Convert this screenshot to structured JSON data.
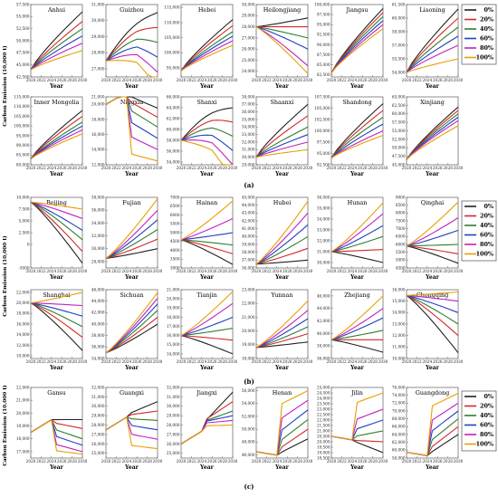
{
  "figure": {
    "xlabel": "Year",
    "xticks": [
      "2020",
      "2022",
      "2024",
      "2026",
      "2028",
      "2030"
    ],
    "legend": [
      "0%",
      "20%",
      "40%",
      "60%",
      "80%",
      "100%"
    ],
    "colors": [
      "#222222",
      "#d62728",
      "#2e7d32",
      "#1f3fbf",
      "#c020c0",
      "#e6a000"
    ],
    "sections": [
      {
        "label": "(a)",
        "ylabel": "Carbon Emission (10,000 t)"
      },
      {
        "label": "(b)",
        "ylabel": "Carbon Emission (10,000 t)"
      },
      {
        "label": "(c)",
        "ylabel": "Carbon Emission (10,000 t)"
      }
    ]
  },
  "chart_data": [
    {
      "type": "line",
      "section": "a",
      "title": "Anhui",
      "yticks": [
        "42,500",
        "45,000",
        "47,500",
        "50,000",
        "52,500",
        "55,000",
        "57,500"
      ],
      "ylim": [
        42500,
        57500
      ],
      "x": [
        2020,
        2030
      ],
      "pattern": "up",
      "start": 44000,
      "ends": [
        56000,
        54000,
        52500,
        51000,
        49500,
        48000
      ]
    },
    {
      "type": "line",
      "section": "a",
      "title": "Guizhou",
      "yticks": [
        "27,000",
        "28,000",
        "29,000",
        "30,000",
        "31,000"
      ],
      "ylim": [
        26500,
        31000
      ],
      "x": [
        2020,
        2030
      ],
      "pattern": "hump",
      "start": 27500,
      "ends": [
        30500,
        29800,
        29100,
        28400,
        27700,
        27000
      ]
    },
    {
      "type": "line",
      "section": "a",
      "title": "Hebei",
      "yticks": [
        "95,000",
        "100,000",
        "105,000",
        "110,000",
        "115,000"
      ],
      "ylim": [
        92000,
        116000
      ],
      "x": [
        2020,
        2030
      ],
      "pattern": "up",
      "start": 94000,
      "ends": [
        111000,
        109000,
        107000,
        105500,
        104000,
        102500
      ]
    },
    {
      "type": "line",
      "section": "a",
      "title": "Heilongjiang",
      "yticks": [
        "24,000",
        "25,000",
        "26,000",
        "27,000",
        "28,000",
        "29,000",
        "30,000"
      ],
      "ylim": [
        23500,
        30000
      ],
      "x": [
        2020,
        2030
      ],
      "pattern": "fan-down",
      "start": 28000,
      "ends": [
        28800,
        28000,
        27000,
        26000,
        24500,
        23800
      ]
    },
    {
      "type": "line",
      "section": "a",
      "title": "Jiangsu",
      "yticks": [
        "82,500",
        "85,000",
        "87,500",
        "90,000",
        "92,500",
        "95,000",
        "97,500",
        "100,000"
      ],
      "ylim": [
        82000,
        100000
      ],
      "x": [
        2020,
        2030
      ],
      "pattern": "up",
      "start": 83000,
      "ends": [
        99000,
        98000,
        97000,
        96000,
        95000,
        94000
      ]
    },
    {
      "type": "line",
      "section": "a",
      "title": "Liaoning",
      "yticks": [
        "54,000",
        "55,500",
        "57,000",
        "58,500",
        "60,000",
        "61,500"
      ],
      "ylim": [
        53500,
        61500
      ],
      "x": [
        2020,
        2030
      ],
      "pattern": "up",
      "start": 54000,
      "ends": [
        61000,
        60000,
        59000,
        58000,
        57000,
        55500
      ]
    },
    {
      "type": "line",
      "section": "a",
      "title": "Inner Mongolia",
      "yticks": [
        "80,000",
        "85,000",
        "90,000",
        "95,000",
        "100,000",
        "105,000",
        "110,000",
        "115,000"
      ],
      "ylim": [
        80000,
        115000
      ],
      "x": [
        2020,
        2030
      ],
      "pattern": "up",
      "start": 83000,
      "ends": [
        108000,
        105000,
        102000,
        100000,
        98000,
        96000
      ]
    },
    {
      "type": "line",
      "section": "a",
      "title": "Ningxia",
      "yticks": [
        "12,000",
        "14,000",
        "16,000",
        "18,000",
        "20,000",
        "21,000"
      ],
      "ylim": [
        12000,
        21000
      ],
      "x": [
        2020,
        2030
      ],
      "pattern": "step-down",
      "start": 20000,
      "ends": [
        19500,
        18300,
        17000,
        15500,
        14000,
        12500
      ]
    },
    {
      "type": "line",
      "section": "a",
      "title": "Shanxi",
      "yticks": [
        "54,000",
        "56,000",
        "58,000",
        "60,000",
        "62,000",
        "64,000",
        "66,000"
      ],
      "ylim": [
        53500,
        66000
      ],
      "x": [
        2020,
        2030
      ],
      "pattern": "hump",
      "start": 58000,
      "ends": [
        64000,
        62000,
        60000,
        58000,
        56000,
        54000
      ]
    },
    {
      "type": "line",
      "section": "a",
      "title": "Shaanxi",
      "yticks": [
        "29,000",
        "30,000",
        "31,000",
        "32,000",
        "33,000",
        "34,000",
        "35,000",
        "36,000",
        "37,000",
        "38,000"
      ],
      "ylim": [
        29000,
        38000
      ],
      "x": [
        2020,
        2030
      ],
      "pattern": "up",
      "start": 30000,
      "ends": [
        37000,
        35500,
        34000,
        33000,
        32000,
        31000
      ]
    },
    {
      "type": "line",
      "section": "a",
      "title": "Shandong",
      "yticks": [
        "92,500",
        "95,000",
        "97,500",
        "100,000",
        "102,500",
        "105,000",
        "107,500"
      ],
      "ylim": [
        92500,
        107500
      ],
      "x": [
        2020,
        2030
      ],
      "pattern": "up",
      "start": 94000,
      "ends": [
        106000,
        104500,
        103000,
        101500,
        100000,
        99000
      ]
    },
    {
      "type": "line",
      "section": "a",
      "title": "Xinjiang",
      "yticks": [
        "45,000",
        "47,500",
        "50,000",
        "52,500",
        "55,000",
        "57,500",
        "60,000",
        "62,500",
        "65,000"
      ],
      "ylim": [
        45000,
        65000
      ],
      "x": [
        2020,
        2030
      ],
      "pattern": "up",
      "start": 46500,
      "ends": [
        62000,
        61000,
        60000,
        59000,
        58000,
        56500
      ]
    },
    {
      "type": "line",
      "section": "b",
      "title": "Beijing",
      "yticks": [
        "-5000",
        "0",
        "2,500",
        "5,000",
        "7,500",
        "10,000"
      ],
      "ylim": [
        -5000,
        10000
      ],
      "x": [
        2020,
        2030
      ],
      "pattern": "fan-down",
      "start": 9000,
      "ends": [
        -4000,
        -1500,
        1000,
        3000,
        5500,
        7500
      ]
    },
    {
      "type": "line",
      "section": "b",
      "title": "Fujian",
      "yticks": [
        "28,000",
        "30,000",
        "32,000",
        "34,000",
        "36,000",
        "38,000"
      ],
      "ylim": [
        27000,
        38000
      ],
      "x": [
        2020,
        2030
      ],
      "pattern": "fan",
      "start": 28500,
      "ends": [
        30000,
        31500,
        33000,
        34500,
        36000,
        37800
      ]
    },
    {
      "type": "line",
      "section": "b",
      "title": "Hainan",
      "yticks": [
        "3000",
        "3500",
        "4000",
        "4500",
        "5000",
        "5500",
        "6000",
        "6500",
        "7000"
      ],
      "ylim": [
        3000,
        7000
      ],
      "x": [
        2020,
        2030
      ],
      "pattern": "fan",
      "start": 4600,
      "ends": [
        3200,
        3800,
        4300,
        5000,
        5800,
        6800
      ]
    },
    {
      "type": "line",
      "section": "b",
      "title": "Hubei",
      "yticks": [
        "36,000",
        "37,000",
        "38,000",
        "39,000",
        "40,000",
        "41,000",
        "42,000",
        "43,000",
        "44,000",
        "45,000"
      ],
      "ylim": [
        36000,
        45000
      ],
      "x": [
        2020,
        2030
      ],
      "pattern": "fan",
      "start": 36500,
      "ends": [
        37000,
        38500,
        40000,
        41500,
        43000,
        44500
      ]
    },
    {
      "type": "line",
      "section": "b",
      "title": "Hunan",
      "yticks": [
        "30,000",
        "31,000",
        "32,000",
        "33,000",
        "34,000",
        "35,000",
        "36,000"
      ],
      "ylim": [
        29500,
        36000
      ],
      "x": [
        2020,
        2030
      ],
      "pattern": "fan",
      "start": 31000,
      "ends": [
        30000,
        31200,
        32400,
        33400,
        34500,
        35500
      ]
    },
    {
      "type": "line",
      "section": "b",
      "title": "Qinghai",
      "yticks": [
        "4500",
        "5000",
        "5500",
        "6000",
        "6500",
        "7000",
        "7500",
        "8000",
        "8500",
        "9000"
      ],
      "ylim": [
        4500,
        9000
      ],
      "x": [
        2020,
        2030
      ],
      "pattern": "fan",
      "start": 5900,
      "ends": [
        4800,
        5400,
        6000,
        6900,
        7700,
        8700
      ]
    },
    {
      "type": "line",
      "section": "b",
      "title": "Shanghai",
      "yticks": [
        "10,000",
        "12,000",
        "14,000",
        "16,000",
        "18,000",
        "20,000",
        "22,000"
      ],
      "ylim": [
        9500,
        22500
      ],
      "x": [
        2020,
        2030
      ],
      "pattern": "fan",
      "start": 20000,
      "ends": [
        11000,
        13500,
        15500,
        17500,
        19500,
        22000
      ]
    },
    {
      "type": "line",
      "section": "b",
      "title": "Sichuan",
      "yticks": [
        "34,000",
        "36,000",
        "38,000",
        "40,000",
        "42,000",
        "44,000",
        "46,000"
      ],
      "ylim": [
        34000,
        46000
      ],
      "x": [
        2020,
        2030
      ],
      "pattern": "fan",
      "start": 35000,
      "ends": [
        40000,
        41200,
        42400,
        43500,
        44500,
        45500
      ]
    },
    {
      "type": "line",
      "section": "b",
      "title": "Tianjin",
      "yticks": [
        "14,000",
        "15,000",
        "16,000",
        "17,000",
        "18,000",
        "19,000",
        "20,000",
        "21,000"
      ],
      "ylim": [
        13500,
        21000
      ],
      "x": [
        2020,
        2030
      ],
      "pattern": "fan",
      "start": 16000,
      "ends": [
        14000,
        15500,
        16800,
        18000,
        19500,
        20800
      ]
    },
    {
      "type": "line",
      "section": "b",
      "title": "Yunnan",
      "yticks": [
        "18,000",
        "19,000",
        "20,000",
        "21,000",
        "22,000",
        "23,000"
      ],
      "ylim": [
        18000,
        23000
      ],
      "x": [
        2020,
        2030
      ],
      "pattern": "fan",
      "start": 18800,
      "ends": [
        19200,
        19800,
        20300,
        20900,
        21500,
        22200
      ]
    },
    {
      "type": "line",
      "section": "b",
      "title": "Zhejiang",
      "yticks": [
        "36,000",
        "38,000",
        "40,000",
        "42,000",
        "44,000",
        "46,000"
      ],
      "ylim": [
        36000,
        47000
      ],
      "x": [
        2020,
        2030
      ],
      "pattern": "fan",
      "start": 39000,
      "ends": [
        37000,
        39000,
        40500,
        42500,
        44000,
        46000
      ]
    },
    {
      "type": "line",
      "section": "b",
      "title": "Chongqing",
      "yticks": [
        "10,000",
        "11,000",
        "12,000",
        "13,000",
        "14,000",
        "15,000",
        "16,000"
      ],
      "ylim": [
        10000,
        16000
      ],
      "x": [
        2020,
        2030
      ],
      "pattern": "fan-down",
      "start": 15500,
      "ends": [
        10500,
        12000,
        13000,
        14000,
        15000,
        15800
      ]
    },
    {
      "type": "line",
      "section": "c",
      "title": "Gansu",
      "yticks": [
        "17,000",
        "18,000",
        "19,000",
        "20,000",
        "21,000",
        "22,000"
      ],
      "ylim": [
        16500,
        22000
      ],
      "x": [
        2020,
        2030
      ],
      "pattern": "step-down",
      "start": 18500,
      "ends": [
        19500,
        18800,
        18000,
        17500,
        17000,
        16800
      ]
    },
    {
      "type": "line",
      "section": "c",
      "title": "Guangxi",
      "yticks": [
        "25,000",
        "26,000",
        "27,000",
        "28,000",
        "29,000",
        "30,000",
        "31,000",
        "32,000"
      ],
      "ylim": [
        24500,
        32000
      ],
      "x": [
        2020,
        2030
      ],
      "pattern": "step-down",
      "start": 27500,
      "ends": [
        30500,
        29500,
        28500,
        27500,
        26500,
        25500
      ]
    },
    {
      "type": "line",
      "section": "c",
      "title": "Jiangxi",
      "yticks": [
        "25,000",
        "26,000",
        "27,000",
        "28,000",
        "29,000",
        "30,000",
        "31,000",
        "32,000"
      ],
      "ylim": [
        24500,
        32000
      ],
      "x": [
        2020,
        2030
      ],
      "pattern": "step-down",
      "start": 26000,
      "ends": [
        31500,
        30500,
        29500,
        29000,
        28500,
        28000
      ]
    },
    {
      "type": "line",
      "section": "c",
      "title": "Henan",
      "yticks": [
        "46,000",
        "48,000",
        "50,000",
        "52,000",
        "54,000",
        "56,000"
      ],
      "ylim": [
        45500,
        56500
      ],
      "x": [
        2020,
        2030
      ],
      "pattern": "step-up",
      "start": 46500,
      "ends": [
        48500,
        50000,
        51500,
        53000,
        54500,
        56000
      ]
    },
    {
      "type": "line",
      "section": "c",
      "title": "Jilin",
      "yticks": [
        "18,500",
        "19,000",
        "19,500",
        "20,000",
        "20,500",
        "21,000",
        "21,500",
        "22,000",
        "22,500",
        "23,000",
        "23,500",
        "24,000",
        "24,500",
        "25,000"
      ],
      "ylim": [
        18500,
        25000
      ],
      "x": [
        2020,
        2030
      ],
      "pattern": "step-up",
      "start": 20500,
      "ends": [
        19000,
        20000,
        21000,
        22000,
        23000,
        24500
      ]
    },
    {
      "type": "line",
      "section": "c",
      "title": "Guangdong",
      "yticks": [
        "58,000",
        "60,000",
        "62,000",
        "64,000",
        "66,000",
        "68,000",
        "70,000",
        "72,000",
        "74,000",
        "76,000"
      ],
      "ylim": [
        58000,
        76000
      ],
      "x": [
        2020,
        2030
      ],
      "pattern": "step-up",
      "start": 59500,
      "ends": [
        64000,
        66000,
        68000,
        70000,
        72000,
        74500
      ]
    }
  ]
}
